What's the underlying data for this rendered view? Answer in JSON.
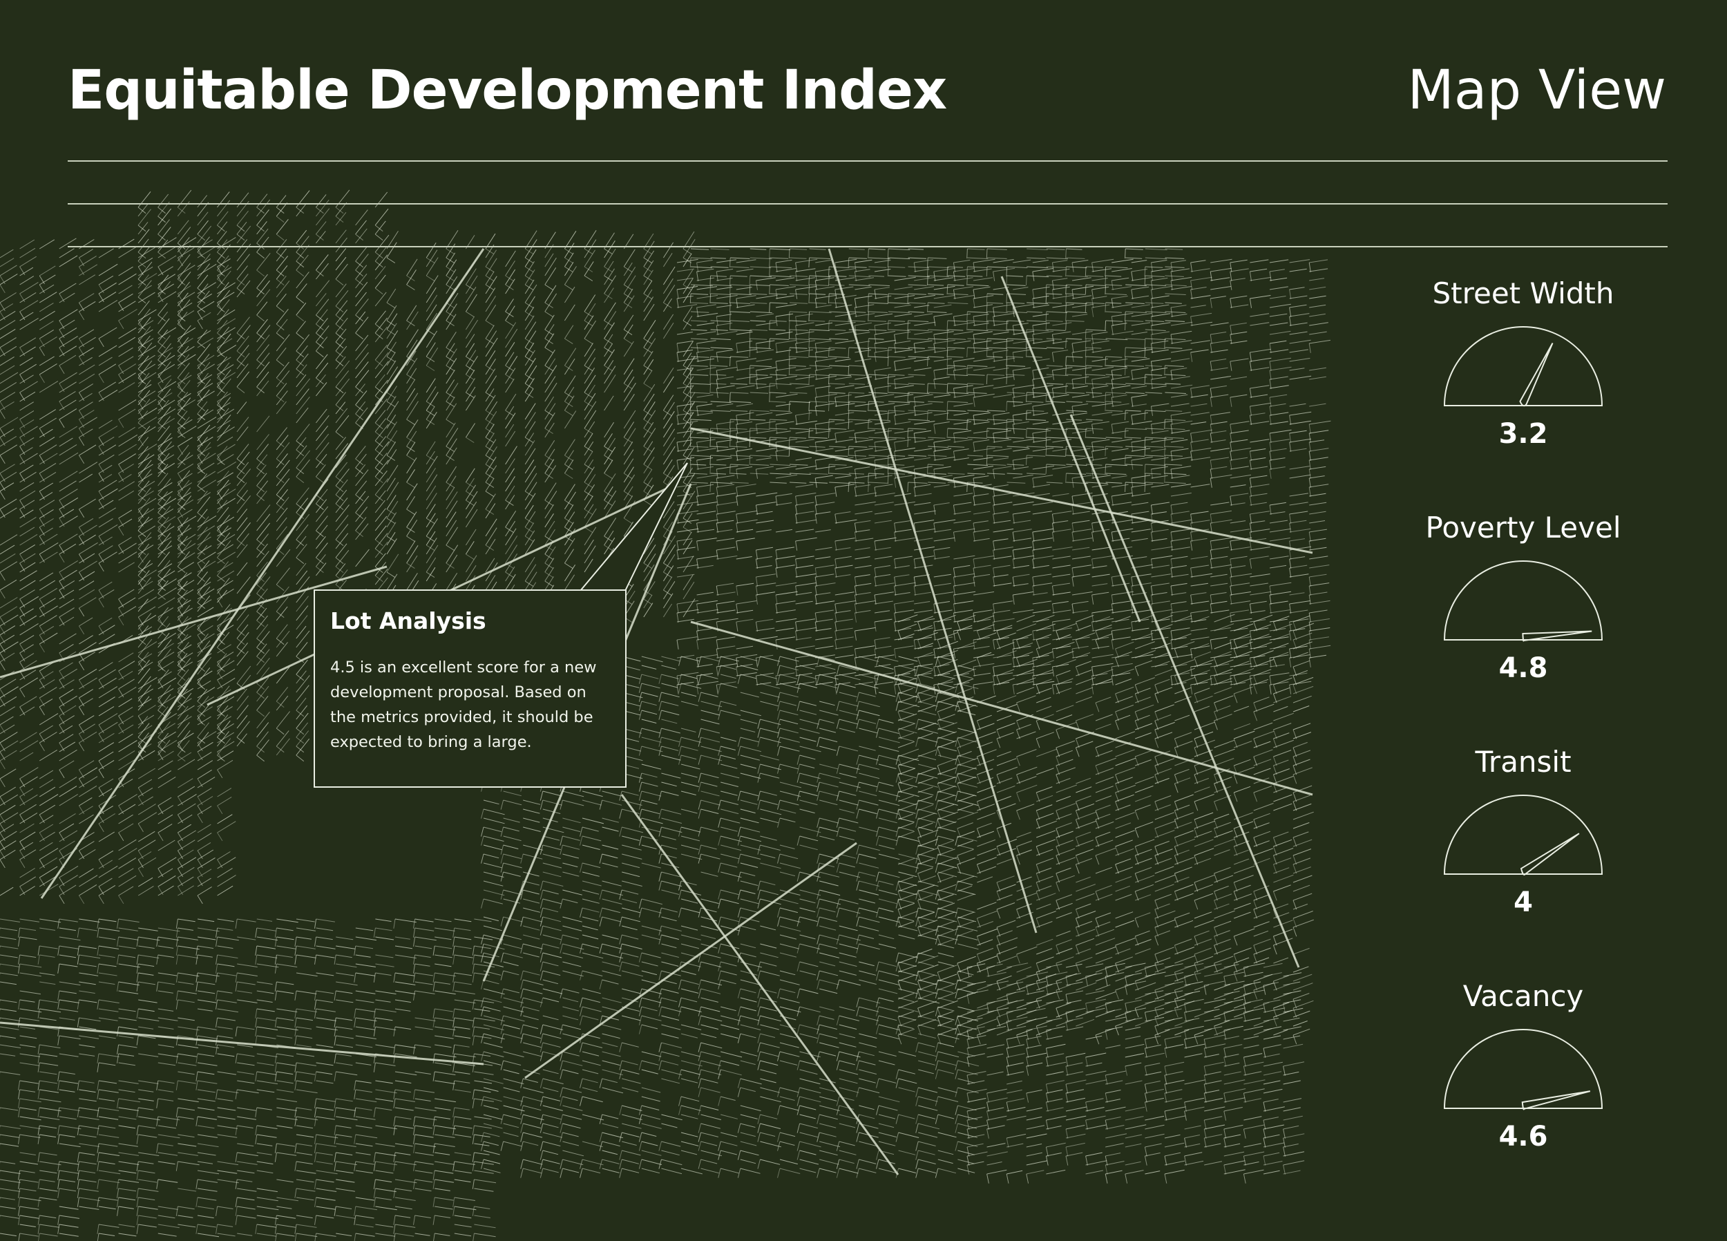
{
  "header": {
    "title": "Equitable Development Index",
    "view_label": "Map View"
  },
  "callout": {
    "title": "Lot Analysis",
    "body": "4.5 is an excellent score for a new development proposal. Based on the metrics provided, it should be expected to bring a large."
  },
  "metrics": [
    {
      "label": "Street Width",
      "value": "3.2",
      "level": 3.2
    },
    {
      "label": "Poverty Level",
      "value": "4.8",
      "level": 4.8
    },
    {
      "label": "Transit",
      "value": "4",
      "level": 4
    },
    {
      "label": "Vacancy",
      "value": "4.6",
      "level": 4.6
    }
  ],
  "gauge_scale": [
    0,
    5
  ],
  "colors": {
    "background": "#242e19",
    "street_lines": "#d8dfcc",
    "text": "#ffffff"
  },
  "icons": [
    "street-map-graphic",
    "gauge-needle-icon"
  ]
}
